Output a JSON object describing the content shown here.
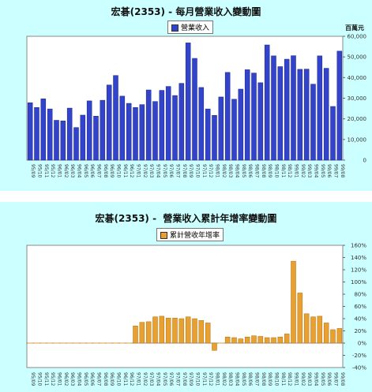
{
  "chart_data": [
    {
      "type": "bar",
      "title": "宏碁(2353) - 每月營業收入變動圖",
      "unit_label": "百萬元",
      "ylim": [
        0,
        60000
      ],
      "yticks": [
        "0",
        "10,000",
        "20,000",
        "30,000",
        "40,000",
        "50,000",
        "60,000"
      ],
      "legend_position": "top-center",
      "color": "#3344cc",
      "series": [
        {
          "name": "營業收入",
          "values": [
            27800,
            25500,
            29700,
            24800,
            19300,
            19000,
            25200,
            15800,
            21800,
            28700,
            21300,
            29000,
            36400,
            41000,
            31000,
            27500,
            25500,
            26900,
            34000,
            28400,
            33800,
            35700,
            31300,
            37200,
            56800,
            49300,
            35200,
            24800,
            21700,
            30600,
            42500,
            29500,
            34400,
            43800,
            42200,
            37500,
            55800,
            50500,
            45300,
            48900,
            50600,
            44000,
            44100,
            36800,
            50500,
            44500,
            26000,
            52800
          ]
        }
      ],
      "categories": [
        "95/09",
        "95/10",
        "95/11",
        "95/12",
        "96/01",
        "96/02",
        "96/03",
        "96/04",
        "96/05",
        "96/06",
        "96/07",
        "96/08",
        "96/09",
        "96/10",
        "96/11",
        "96/12",
        "97/01",
        "97/02",
        "97/03",
        "97/04",
        "97/05",
        "97/06",
        "97/07",
        "97/08",
        "97/09",
        "97/10",
        "97/11",
        "97/12",
        "98/01",
        "98/02",
        "98/03",
        "98/04",
        "98/05",
        "98/06",
        "98/07",
        "98/08",
        "98/09",
        "98/10",
        "98/11",
        "98/12",
        "99/01",
        "99/02",
        "99/03",
        "99/04",
        "99/05",
        "99/06",
        "99/07",
        "99/08"
      ]
    },
    {
      "type": "bar",
      "title": "宏碁(2353) -  營業收入累計年增率變動圖",
      "ylim": [
        -40,
        160
      ],
      "yticks": [
        "-40%",
        "-20%",
        "0%",
        "20%",
        "40%",
        "60%",
        "80%",
        "100%",
        "120%",
        "140%",
        "160%"
      ],
      "legend_position": "top-center",
      "color": "#e8a030",
      "series": [
        {
          "name": "累計營收年增率",
          "values": [
            0,
            0,
            0,
            0,
            0,
            0,
            0,
            0,
            0,
            0,
            0,
            0,
            0,
            0,
            0,
            0,
            28,
            34,
            35,
            43,
            44,
            41,
            41,
            40,
            43,
            40,
            37,
            33,
            -12,
            0,
            10,
            9,
            7,
            10,
            12,
            11,
            9,
            9,
            10,
            15,
            134,
            82,
            48,
            43,
            44,
            33,
            22,
            24
          ]
        }
      ],
      "categories": [
        "95/09",
        "95/10",
        "95/11",
        "95/12",
        "96/01",
        "96/02",
        "96/03",
        "96/04",
        "96/05",
        "96/06",
        "96/07",
        "96/08",
        "96/09",
        "96/10",
        "96/11",
        "96/12",
        "97/01",
        "97/02",
        "97/03",
        "97/04",
        "97/05",
        "97/06",
        "97/07",
        "97/08",
        "97/09",
        "97/10",
        "97/11",
        "97/12",
        "98/01",
        "98/02",
        "98/03",
        "98/04",
        "98/05",
        "98/06",
        "98/07",
        "98/08",
        "98/09",
        "98/10",
        "98/11",
        "98/12",
        "99/01",
        "99/02",
        "99/03",
        "99/04",
        "99/05",
        "99/06",
        "99/07",
        "99/08"
      ]
    }
  ]
}
